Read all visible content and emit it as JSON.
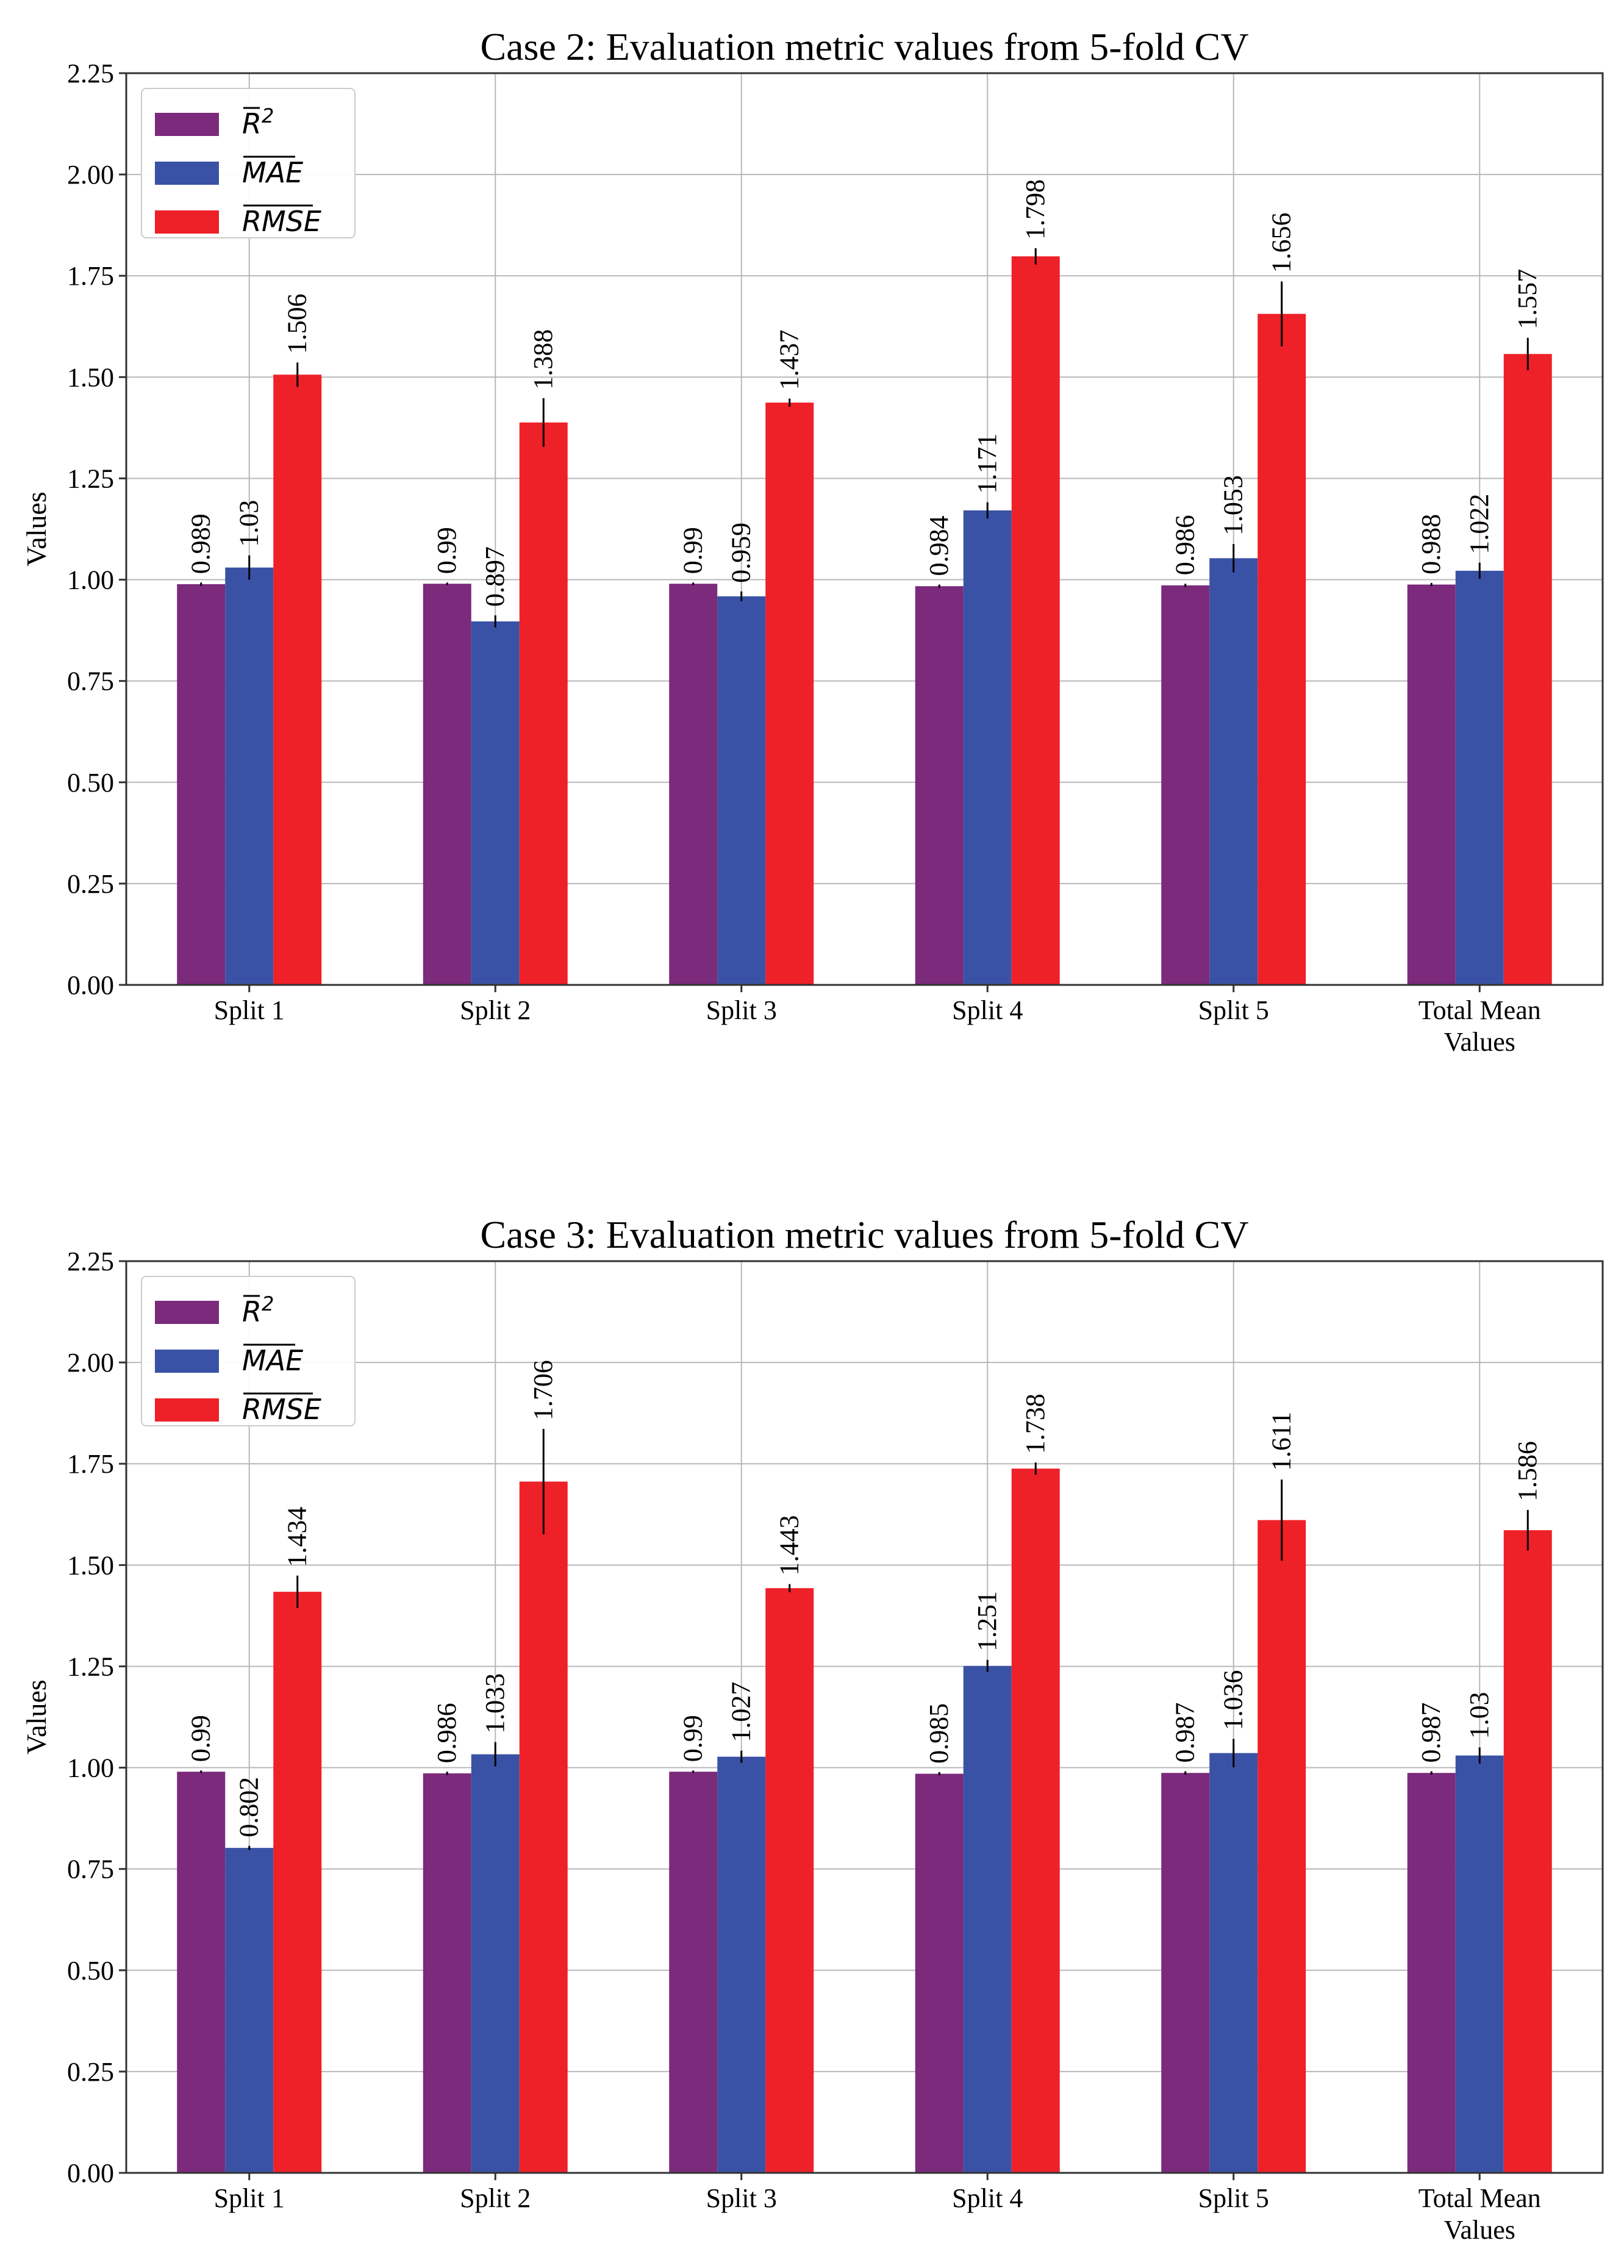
{
  "chart_data": [
    {
      "type": "bar",
      "title": "Case 2: Evaluation metric values from 5-fold CV",
      "xlabel": "",
      "ylabel": "Values",
      "ylim": [
        0,
        2.25
      ],
      "yticks": [
        "0.00",
        "0.25",
        "0.50",
        "0.75",
        "1.00",
        "1.25",
        "1.50",
        "1.75",
        "2.00",
        "2.25"
      ],
      "grid": true,
      "legend_position": "top-left",
      "categories": [
        [
          "Split 1"
        ],
        [
          "Split 2"
        ],
        [
          "Split 3"
        ],
        [
          "Split 4"
        ],
        [
          "Split 5"
        ],
        [
          "Total Mean",
          "Values"
        ]
      ],
      "series": [
        {
          "name": "R2",
          "legend_main": "R",
          "legend_sup": "2",
          "color": "#7b2a7c",
          "values": [
            0.989,
            0.99,
            0.99,
            0.984,
            0.986,
            0.988
          ],
          "labels": [
            "0.989",
            "0.99",
            "0.99",
            "0.984",
            "0.986",
            "0.988"
          ],
          "errors": [
            0.004,
            0.003,
            0.003,
            0.004,
            0.004,
            0.004
          ]
        },
        {
          "name": "MAE",
          "legend_main": "MAE",
          "legend_sup": "",
          "color": "#3a52a5",
          "values": [
            1.03,
            0.897,
            0.959,
            1.171,
            1.053,
            1.022
          ],
          "labels": [
            "1.03",
            "0.897",
            "0.959",
            "1.171",
            "1.053",
            "1.022"
          ],
          "errors": [
            0.03,
            0.015,
            0.012,
            0.02,
            0.035,
            0.02
          ]
        },
        {
          "name": "RMSE",
          "legend_main": "RMSE",
          "legend_sup": "",
          "color": "#ee2028",
          "values": [
            1.506,
            1.388,
            1.437,
            1.798,
            1.656,
            1.557
          ],
          "labels": [
            "1.506",
            "1.388",
            "1.437",
            "1.798",
            "1.656",
            "1.557"
          ],
          "errors": [
            0.03,
            0.06,
            0.01,
            0.02,
            0.08,
            0.04
          ]
        }
      ]
    },
    {
      "type": "bar",
      "title": "Case 3: Evaluation metric values from 5-fold CV",
      "xlabel": "",
      "ylabel": "Values",
      "ylim": [
        0,
        2.25
      ],
      "yticks": [
        "0.00",
        "0.25",
        "0.50",
        "0.75",
        "1.00",
        "1.25",
        "1.50",
        "1.75",
        "2.00",
        "2.25"
      ],
      "grid": true,
      "legend_position": "top-left",
      "categories": [
        [
          "Split 1"
        ],
        [
          "Split 2"
        ],
        [
          "Split 3"
        ],
        [
          "Split 4"
        ],
        [
          "Split 5"
        ],
        [
          "Total Mean",
          "Values"
        ]
      ],
      "series": [
        {
          "name": "R2",
          "legend_main": "R",
          "legend_sup": "2",
          "color": "#7b2a7c",
          "values": [
            0.99,
            0.986,
            0.99,
            0.985,
            0.987,
            0.987
          ],
          "labels": [
            "0.99",
            "0.986",
            "0.99",
            "0.985",
            "0.987",
            "0.987"
          ],
          "errors": [
            0.003,
            0.004,
            0.003,
            0.004,
            0.004,
            0.004
          ]
        },
        {
          "name": "MAE",
          "legend_main": "MAE",
          "legend_sup": "",
          "color": "#3a52a5",
          "values": [
            0.802,
            1.033,
            1.027,
            1.251,
            1.036,
            1.03
          ],
          "labels": [
            "0.802",
            "1.033",
            "1.027",
            "1.251",
            "1.036",
            "1.03"
          ],
          "errors": [
            0.005,
            0.03,
            0.015,
            0.015,
            0.035,
            0.02
          ]
        },
        {
          "name": "RMSE",
          "legend_main": "RMSE",
          "legend_sup": "",
          "color": "#ee2028",
          "values": [
            1.434,
            1.706,
            1.443,
            1.738,
            1.611,
            1.586
          ],
          "labels": [
            "1.434",
            "1.706",
            "1.443",
            "1.738",
            "1.611",
            "1.586"
          ],
          "errors": [
            0.04,
            0.13,
            0.01,
            0.015,
            0.1,
            0.05
          ]
        }
      ]
    }
  ]
}
